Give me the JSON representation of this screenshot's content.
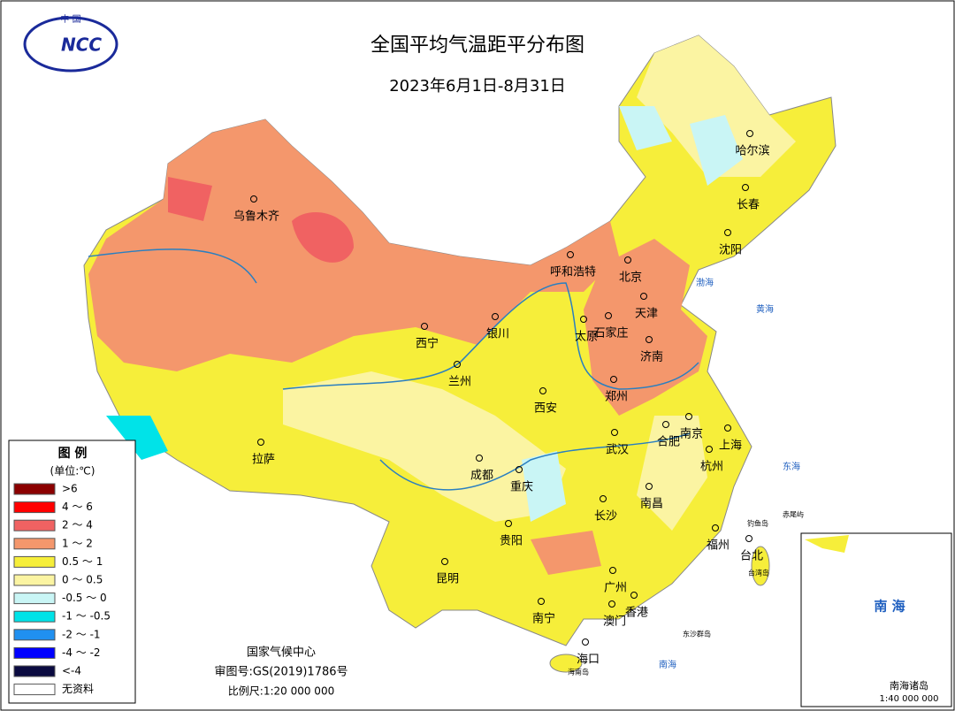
{
  "title": "全国平均气温距平分布图",
  "subtitle": "2023年6月1日-8月31日",
  "logo": {
    "top": "中 国",
    "mark": "NCC"
  },
  "legend": {
    "title": "图 例",
    "unit": "(单位:℃)",
    "items": [
      {
        "label": ">6",
        "color": "#8b0000"
      },
      {
        "label": "4 ～ 6",
        "color": "#ff0000"
      },
      {
        "label": "2 ～ 4",
        "color": "#f06262"
      },
      {
        "label": "1 ～ 2",
        "color": "#f4976c"
      },
      {
        "label": "0.5 ～ 1",
        "color": "#f6ee3a"
      },
      {
        "label": "0 ～ 0.5",
        "color": "#fbf4a2"
      },
      {
        "label": "-0.5 ～ 0",
        "color": "#c9f5f5"
      },
      {
        "label": "-1 ～ -0.5",
        "color": "#00e3e8"
      },
      {
        "label": "-2 ～ -1",
        "color": "#2090f0"
      },
      {
        "label": "-4 ～ -2",
        "color": "#0000ff"
      },
      {
        "label": "<-4",
        "color": "#0a0a40"
      },
      {
        "label": "无资料",
        "color": "#ffffff"
      }
    ]
  },
  "cities": [
    "哈尔滨",
    "长春",
    "沈阳",
    "乌鲁木齐",
    "呼和浩特",
    "北京",
    "天津",
    "石家庄",
    "太原",
    "济南",
    "银川",
    "西宁",
    "兰州",
    "郑州",
    "西安",
    "南京",
    "合肥",
    "上海",
    "武汉",
    "杭州",
    "拉萨",
    "成都",
    "重庆",
    "南昌",
    "长沙",
    "贵阳",
    "福州",
    "台北",
    "昆明",
    "广州",
    "南宁",
    "澳门",
    "香港",
    "海口"
  ],
  "seas": [
    "渤海",
    "黄海",
    "东海",
    "南海"
  ],
  "islands": [
    "钓鱼岛",
    "赤尾屿",
    "台湾岛",
    "海南岛",
    "东沙群岛"
  ],
  "footer": {
    "agency": "国家气候中心",
    "approval": "审图号:GS(2019)1786号",
    "scale": "比例尺:1:20 000 000"
  },
  "inset": {
    "sea": "南 海",
    "title": "南海诸岛",
    "scale": "1:40 000 000"
  }
}
